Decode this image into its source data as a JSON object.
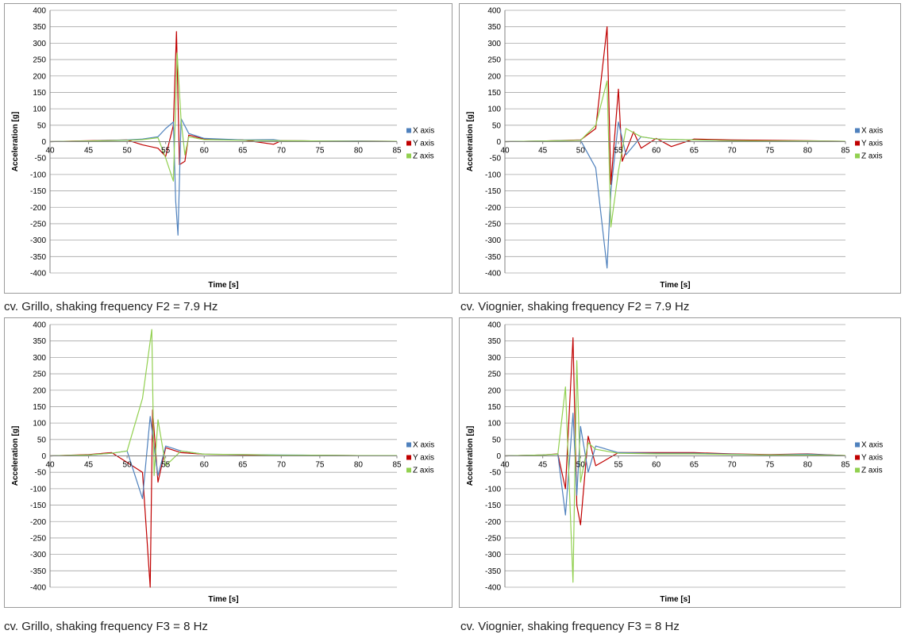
{
  "chart_data": [
    {
      "type": "line",
      "caption": "cv. Grillo, shaking frequency F2 = 7.9 Hz",
      "xlabel": "Time [s]",
      "ylabel": "Acceleration [g]",
      "xlim": [
        40,
        85
      ],
      "ylim": [
        -400,
        400
      ],
      "xticks": [
        40,
        45,
        50,
        55,
        60,
        65,
        70,
        75,
        80,
        85
      ],
      "yticks": [
        -400,
        -350,
        -300,
        -250,
        -200,
        -150,
        -100,
        -50,
        0,
        50,
        100,
        150,
        200,
        250,
        300,
        350,
        400
      ],
      "grid": true,
      "legend": "right",
      "colors": [
        "#4f81bd",
        "#c00000",
        "#92d050"
      ],
      "series": [
        {
          "name": "X axis",
          "values": [
            [
              40,
              0
            ],
            [
              45,
              2
            ],
            [
              50,
              5
            ],
            [
              52,
              8
            ],
            [
              54,
              15
            ],
            [
              55,
              40
            ],
            [
              56,
              60
            ],
            [
              56.3,
              -180
            ],
            [
              56.6,
              -285
            ],
            [
              57,
              70
            ],
            [
              58,
              25
            ],
            [
              60,
              10
            ],
            [
              65,
              5
            ],
            [
              69,
              6
            ],
            [
              70,
              3
            ],
            [
              75,
              2
            ],
            [
              80,
              2
            ],
            [
              85,
              1
            ]
          ]
        },
        {
          "name": "Y axis",
          "values": [
            [
              40,
              0
            ],
            [
              45,
              3
            ],
            [
              50,
              5
            ],
            [
              52,
              -10
            ],
            [
              54,
              -20
            ],
            [
              55,
              -45
            ],
            [
              56,
              50
            ],
            [
              56.4,
              335
            ],
            [
              56.8,
              -70
            ],
            [
              57.5,
              -60
            ],
            [
              58,
              20
            ],
            [
              60,
              8
            ],
            [
              65,
              5
            ],
            [
              69,
              -8
            ],
            [
              70,
              3
            ],
            [
              75,
              2
            ],
            [
              80,
              2
            ],
            [
              85,
              1
            ]
          ]
        },
        {
          "name": "Z axis",
          "values": [
            [
              40,
              0
            ],
            [
              45,
              2
            ],
            [
              50,
              4
            ],
            [
              52,
              6
            ],
            [
              54,
              12
            ],
            [
              55,
              -50
            ],
            [
              56,
              -120
            ],
            [
              56.5,
              270
            ],
            [
              57,
              65
            ],
            [
              57.5,
              -40
            ],
            [
              58,
              15
            ],
            [
              60,
              6
            ],
            [
              65,
              4
            ],
            [
              70,
              3
            ],
            [
              75,
              2
            ],
            [
              80,
              1
            ],
            [
              85,
              1
            ]
          ]
        }
      ]
    },
    {
      "type": "line",
      "caption": "cv. Viognier, shaking frequency F2 = 7.9 Hz",
      "xlabel": "Time [s]",
      "ylabel": "Acceleration [g]",
      "xlim": [
        40,
        85
      ],
      "ylim": [
        -400,
        400
      ],
      "xticks": [
        40,
        45,
        50,
        55,
        60,
        65,
        70,
        75,
        80,
        85
      ],
      "yticks": [
        -400,
        -350,
        -300,
        -250,
        -200,
        -150,
        -100,
        -50,
        0,
        50,
        100,
        150,
        200,
        250,
        300,
        350,
        400
      ],
      "grid": true,
      "legend": "right",
      "colors": [
        "#4f81bd",
        "#c00000",
        "#92d050"
      ],
      "series": [
        {
          "name": "X axis",
          "values": [
            [
              40,
              0
            ],
            [
              45,
              2
            ],
            [
              50,
              4
            ],
            [
              52,
              -80
            ],
            [
              53.5,
              -385
            ],
            [
              54,
              -150
            ],
            [
              55,
              60
            ],
            [
              56,
              -40
            ],
            [
              58,
              15
            ],
            [
              60,
              8
            ],
            [
              65,
              5
            ],
            [
              70,
              3
            ],
            [
              75,
              2
            ],
            [
              80,
              2
            ],
            [
              85,
              1
            ]
          ]
        },
        {
          "name": "Y axis",
          "values": [
            [
              40,
              0
            ],
            [
              45,
              2
            ],
            [
              50,
              5
            ],
            [
              52,
              40
            ],
            [
              53.5,
              350
            ],
            [
              54,
              -130
            ],
            [
              55,
              160
            ],
            [
              55.5,
              -60
            ],
            [
              57,
              30
            ],
            [
              58,
              -20
            ],
            [
              60,
              10
            ],
            [
              62,
              -15
            ],
            [
              65,
              8
            ],
            [
              70,
              5
            ],
            [
              75,
              4
            ],
            [
              80,
              3
            ],
            [
              85,
              1
            ]
          ]
        },
        {
          "name": "Z axis",
          "values": [
            [
              40,
              0
            ],
            [
              45,
              2
            ],
            [
              50,
              4
            ],
            [
              52,
              50
            ],
            [
              53.5,
              185
            ],
            [
              54,
              -260
            ],
            [
              55,
              -90
            ],
            [
              56,
              40
            ],
            [
              58,
              15
            ],
            [
              60,
              8
            ],
            [
              65,
              5
            ],
            [
              70,
              3
            ],
            [
              75,
              2
            ],
            [
              80,
              2
            ],
            [
              85,
              1
            ]
          ]
        }
      ]
    },
    {
      "type": "line",
      "caption": "cv. Grillo, shaking frequency F3 = 8 Hz",
      "xlabel": "Time [s]",
      "ylabel": "Acceleration [g]",
      "xlim": [
        40,
        85
      ],
      "ylim": [
        -400,
        400
      ],
      "xticks": [
        40,
        45,
        50,
        55,
        60,
        65,
        70,
        75,
        80,
        85
      ],
      "yticks": [
        -400,
        -350,
        -300,
        -250,
        -200,
        -150,
        -100,
        -50,
        0,
        50,
        100,
        150,
        200,
        250,
        300,
        350,
        400
      ],
      "grid": true,
      "legend": "right",
      "colors": [
        "#4f81bd",
        "#c00000",
        "#92d050"
      ],
      "series": [
        {
          "name": "X axis",
          "values": [
            [
              40,
              0
            ],
            [
              45,
              3
            ],
            [
              48,
              8
            ],
            [
              50,
              15
            ],
            [
              52,
              -130
            ],
            [
              53,
              120
            ],
            [
              54,
              -60
            ],
            [
              55,
              30
            ],
            [
              57,
              15
            ],
            [
              60,
              5
            ],
            [
              65,
              4
            ],
            [
              70,
              3
            ],
            [
              75,
              2
            ],
            [
              80,
              1
            ],
            [
              85,
              1
            ]
          ]
        },
        {
          "name": "Y axis",
          "values": [
            [
              40,
              0
            ],
            [
              45,
              4
            ],
            [
              48,
              10
            ],
            [
              50,
              -20
            ],
            [
              52,
              -50
            ],
            [
              53,
              -400
            ],
            [
              53.3,
              140
            ],
            [
              54,
              -80
            ],
            [
              55,
              25
            ],
            [
              57,
              10
            ],
            [
              60,
              5
            ],
            [
              65,
              3
            ],
            [
              70,
              2
            ],
            [
              75,
              2
            ],
            [
              80,
              1
            ],
            [
              85,
              1
            ]
          ]
        },
        {
          "name": "Z axis",
          "values": [
            [
              40,
              0
            ],
            [
              45,
              3
            ],
            [
              48,
              8
            ],
            [
              50,
              15
            ],
            [
              52,
              175
            ],
            [
              53.2,
              385
            ],
            [
              53.5,
              -60
            ],
            [
              54,
              110
            ],
            [
              55,
              -30
            ],
            [
              57,
              15
            ],
            [
              60,
              5
            ],
            [
              65,
              4
            ],
            [
              70,
              2
            ],
            [
              75,
              2
            ],
            [
              80,
              1
            ],
            [
              85,
              1
            ]
          ]
        }
      ]
    },
    {
      "type": "line",
      "caption": "cv. Viognier, shaking frequency F3 = 8 Hz",
      "xlabel": "Time [s]",
      "ylabel": "Acceleration [g]",
      "xlim": [
        40,
        85
      ],
      "ylim": [
        -400,
        400
      ],
      "xticks": [
        40,
        45,
        50,
        55,
        60,
        65,
        70,
        75,
        80,
        85
      ],
      "yticks": [
        -400,
        -350,
        -300,
        -250,
        -200,
        -150,
        -100,
        -50,
        0,
        50,
        100,
        150,
        200,
        250,
        300,
        350,
        400
      ],
      "grid": true,
      "legend": "right",
      "colors": [
        "#4f81bd",
        "#c00000",
        "#92d050"
      ],
      "series": [
        {
          "name": "X axis",
          "values": [
            [
              40,
              0
            ],
            [
              45,
              3
            ],
            [
              47,
              5
            ],
            [
              48,
              -180
            ],
            [
              49,
              130
            ],
            [
              49.5,
              -120
            ],
            [
              50,
              90
            ],
            [
              51,
              -50
            ],
            [
              52,
              30
            ],
            [
              55,
              10
            ],
            [
              60,
              8
            ],
            [
              65,
              8
            ],
            [
              70,
              5
            ],
            [
              75,
              3
            ],
            [
              80,
              5
            ],
            [
              85,
              1
            ]
          ]
        },
        {
          "name": "Y axis",
          "values": [
            [
              40,
              0
            ],
            [
              45,
              3
            ],
            [
              47,
              6
            ],
            [
              48,
              -100
            ],
            [
              49,
              360
            ],
            [
              49.5,
              -150
            ],
            [
              50,
              -210
            ],
            [
              51,
              60
            ],
            [
              52,
              -30
            ],
            [
              55,
              10
            ],
            [
              60,
              10
            ],
            [
              65,
              10
            ],
            [
              70,
              6
            ],
            [
              75,
              4
            ],
            [
              80,
              6
            ],
            [
              85,
              1
            ]
          ]
        },
        {
          "name": "Z axis",
          "values": [
            [
              40,
              0
            ],
            [
              45,
              3
            ],
            [
              47,
              5
            ],
            [
              48,
              210
            ],
            [
              49,
              -385
            ],
            [
              49.5,
              290
            ],
            [
              50,
              -80
            ],
            [
              51,
              40
            ],
            [
              52,
              20
            ],
            [
              55,
              8
            ],
            [
              60,
              6
            ],
            [
              65,
              6
            ],
            [
              70,
              4
            ],
            [
              75,
              3
            ],
            [
              80,
              3
            ],
            [
              85,
              1
            ]
          ]
        }
      ]
    }
  ]
}
